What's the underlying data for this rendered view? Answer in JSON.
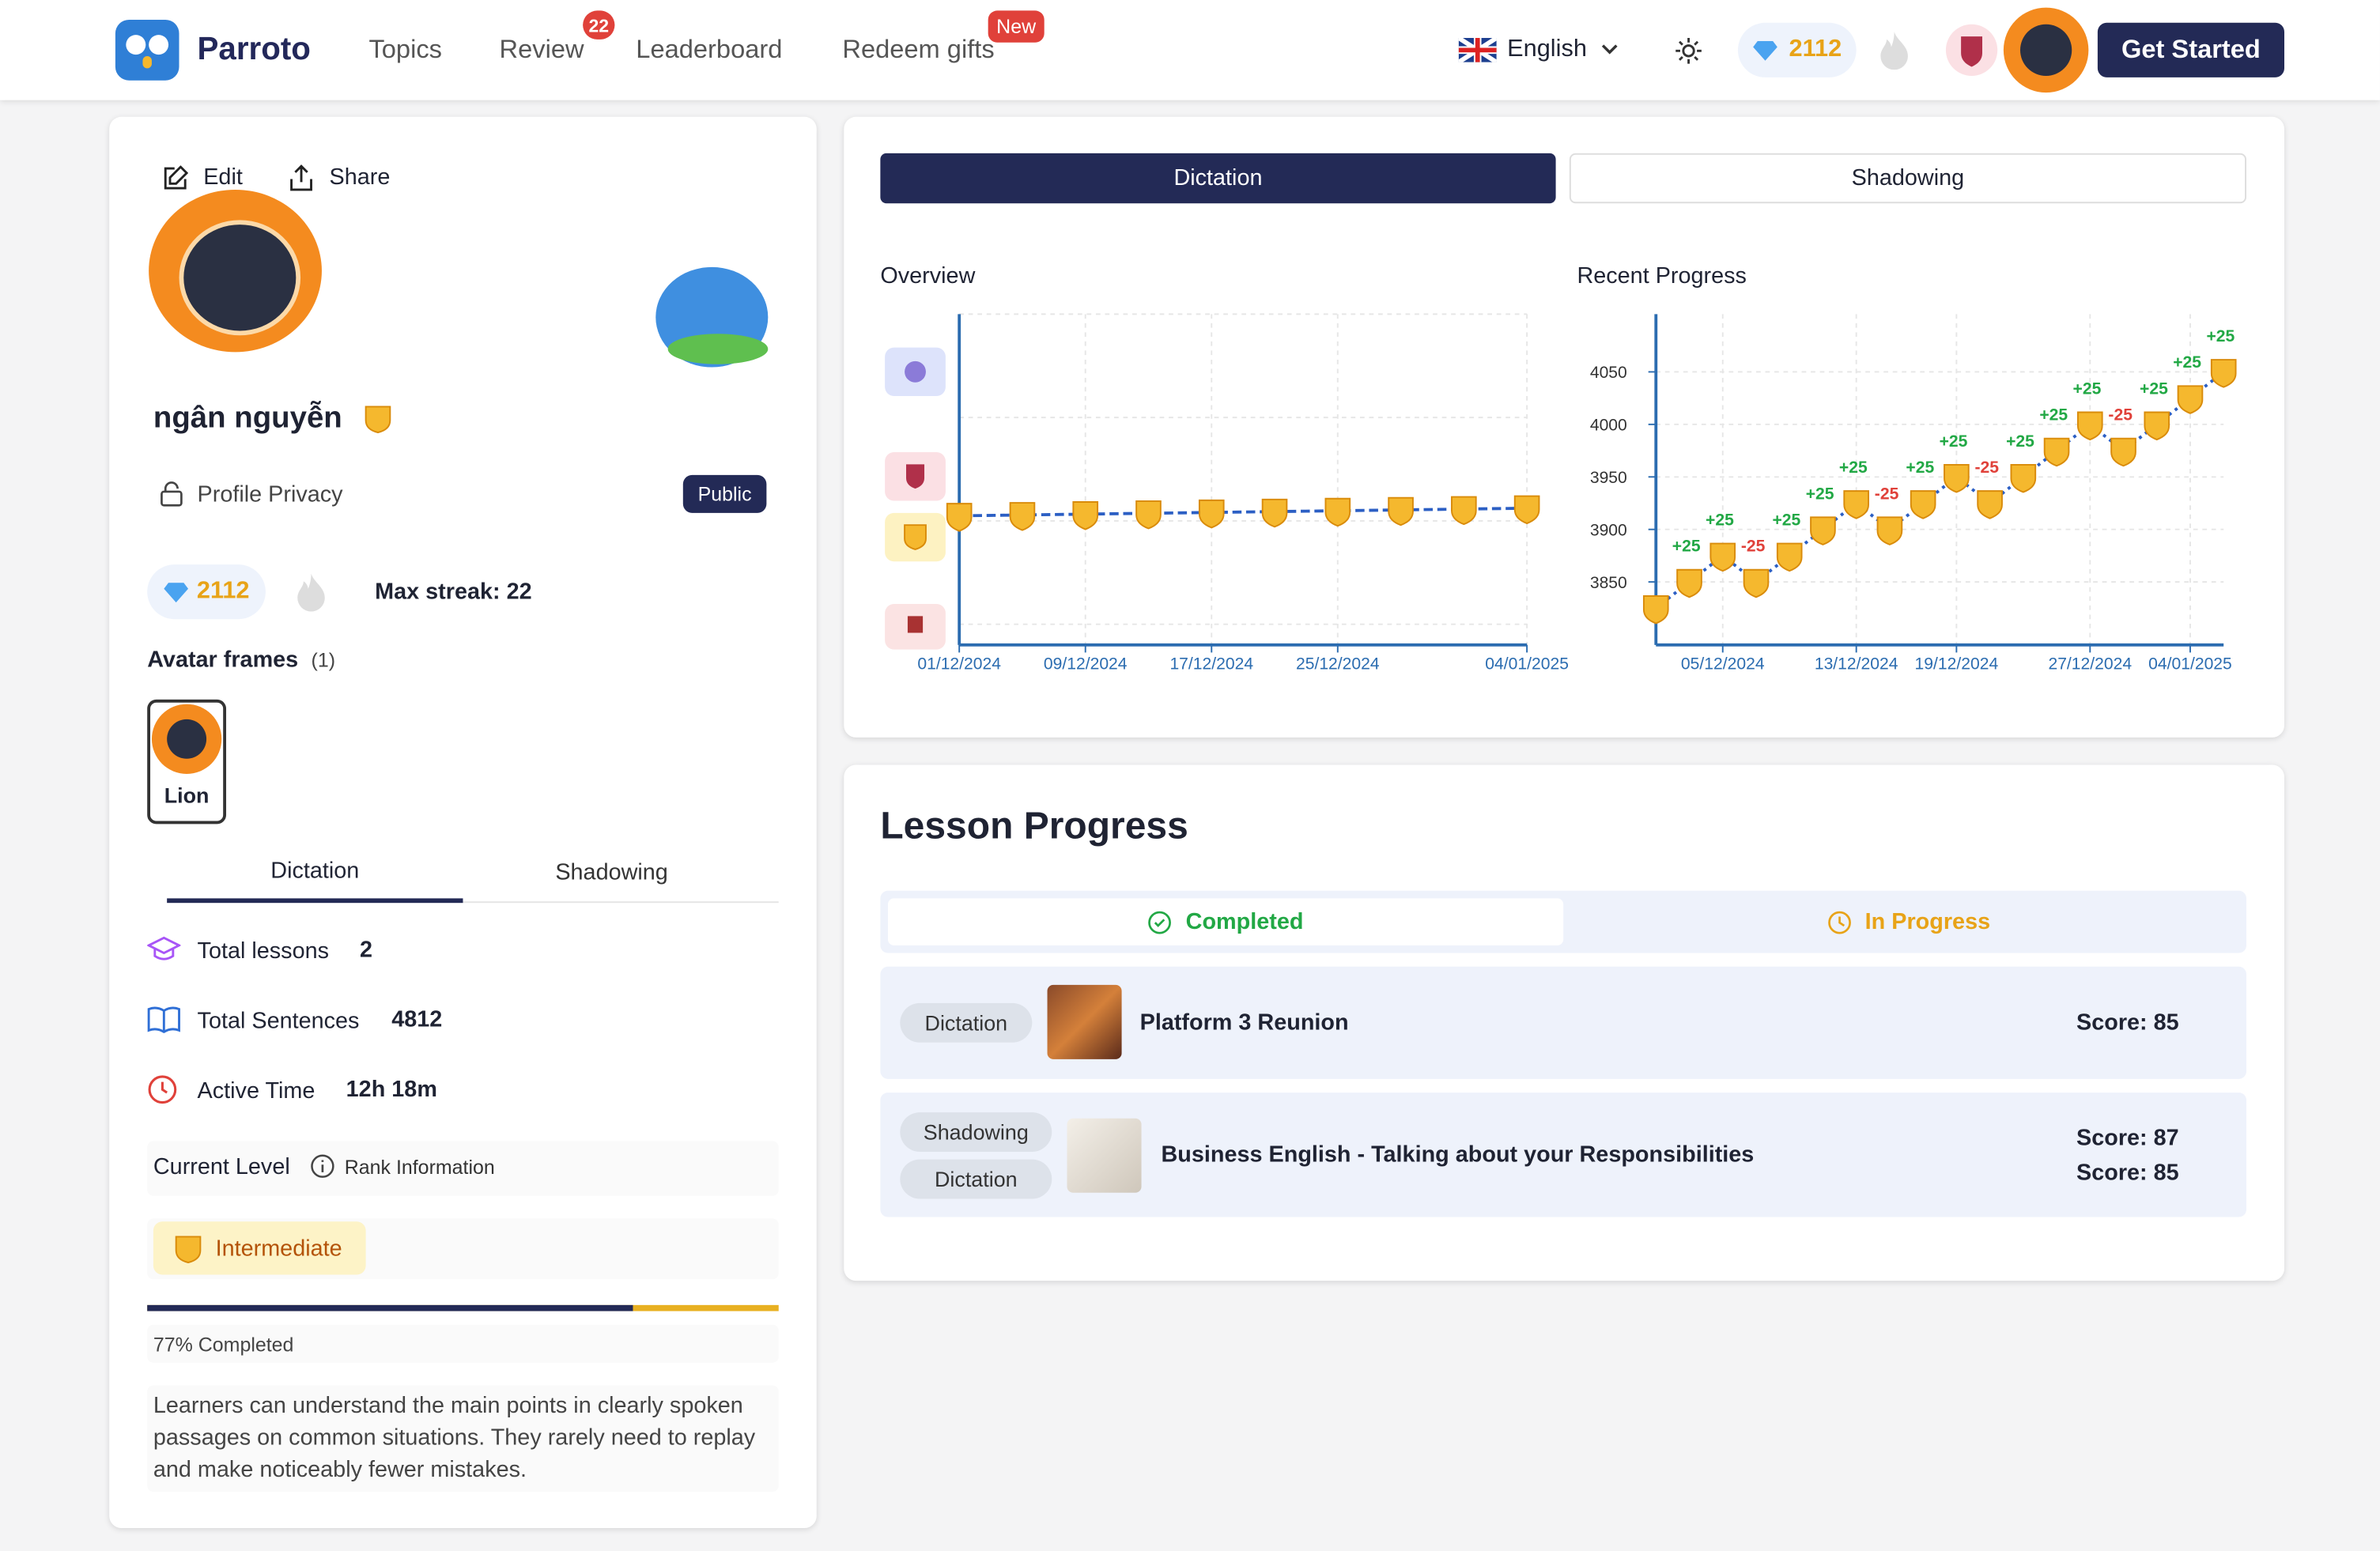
{
  "nav": {
    "brand": "Parroto",
    "items": [
      "Topics",
      "Review",
      "Leaderboard",
      "Redeem gifts"
    ],
    "review_badge": "22",
    "redeem_badge": "New",
    "language": "English",
    "gems": "2112",
    "cta": "Get Started"
  },
  "profile": {
    "edit": "Edit",
    "share": "Share",
    "name": "ngân nguyễn",
    "privacy_label": "Profile Privacy",
    "privacy_value": "Public",
    "gems": "2112",
    "max_streak": "Max streak: 22",
    "frames_title": "Avatar frames",
    "frames_count": "(1)",
    "frame_name": "Lion",
    "tabs": [
      "Dictation",
      "Shadowing"
    ],
    "stats": [
      {
        "label": "Total lessons",
        "value": "2"
      },
      {
        "label": "Total Sentences",
        "value": "4812"
      },
      {
        "label": "Active Time",
        "value": "12h 18m"
      }
    ],
    "level_title": "Current Level",
    "rank_info": "Rank Information",
    "level": "Intermediate",
    "progress": 77,
    "progress_lim": [
      0,
      100
    ],
    "progress_label": "77% Completed",
    "description": "Learners can understand the main points in clearly spoken passages on common situations. They rarely need to replay and make noticeably fewer mistakes."
  },
  "mode_tabs": [
    "Dictation",
    "Shadowing"
  ],
  "chart_data": [
    {
      "type": "line",
      "title": "Overview",
      "categories": [
        "01/12/2024",
        null,
        "09/12/2024",
        null,
        "17/12/2024",
        null,
        "25/12/2024",
        null,
        null,
        "04/01/2025"
      ],
      "values": [
        3825,
        3850,
        3875,
        3900,
        3925,
        3950,
        3975,
        4000,
        4025,
        4050
      ],
      "ylim": [
        0,
        9800
      ],
      "grid": true,
      "line_color": "#2c5fc4",
      "marker_color": "#f5b82e",
      "axis_color": "#2b6cb0"
    },
    {
      "type": "line",
      "title": "Recent Progress",
      "categories": [
        null,
        null,
        "05/12/2024",
        null,
        null,
        null,
        "13/12/2024",
        null,
        null,
        "19/12/2024",
        null,
        null,
        null,
        "27/12/2024",
        null,
        null,
        "04/01/2025",
        null
      ],
      "values": [
        3825,
        3850,
        3875,
        3850,
        3875,
        3900,
        3925,
        3900,
        3925,
        3950,
        3925,
        3950,
        3975,
        4000,
        3975,
        4000,
        4025,
        4050
      ],
      "delta_labels": [
        null,
        "+25",
        "+25",
        "-25",
        "+25",
        "+25",
        "+25",
        "-25",
        "+25",
        "+25",
        "-25",
        "+25",
        "+25",
        "+25",
        "-25",
        "+25",
        "+25",
        "+25"
      ],
      "ylim": [
        3790,
        4105
      ],
      "yticks": [
        3850,
        3900,
        3950,
        4000,
        4050
      ],
      "grid": true,
      "line_color": "#2c5fc4",
      "marker_color": "#f5b82e",
      "axis_color": "#2b6cb0",
      "positive_color": "#22a845",
      "negative_color": "#e0413a"
    }
  ],
  "lessons": {
    "title": "Lesson Progress",
    "tabs": [
      "Completed",
      "In Progress"
    ],
    "items": [
      {
        "tags": [
          "Dictation"
        ],
        "title": "Platform 3 Reunion",
        "scores": [
          "Score: 85"
        ]
      },
      {
        "tags": [
          "Shadowing",
          "Dictation"
        ],
        "title": "Business English - Talking about your Responsibilities",
        "scores": [
          "Score: 87",
          "Score: 85"
        ]
      }
    ]
  }
}
